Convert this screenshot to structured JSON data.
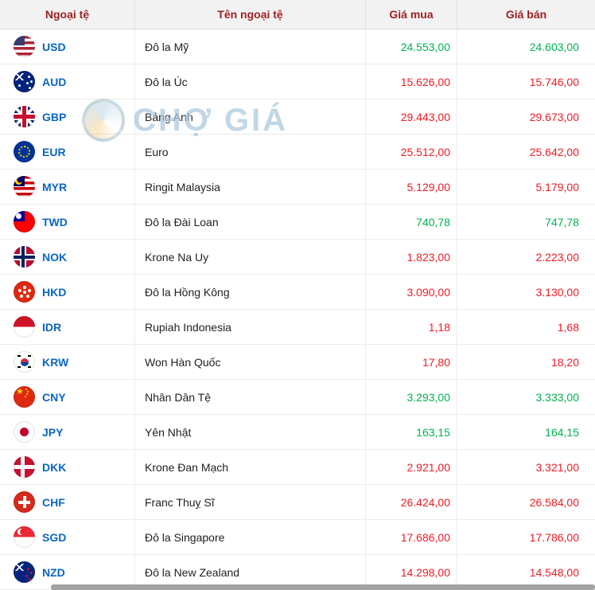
{
  "watermark": {
    "text": "CHỢ GIÁ"
  },
  "colors": {
    "up": "#00b14f",
    "down": "#ee1c25",
    "code": "#0a66c2",
    "header_text": "#9e2021",
    "header_bg": "#f2f2f2",
    "watermark": "#a9c6da"
  },
  "table": {
    "headers": [
      "Ngoại tệ",
      "Tên ngoại tệ",
      "Giá mua",
      "Giá bán"
    ],
    "rows": [
      {
        "code": "USD",
        "flag": "us",
        "name": "Đô la Mỹ",
        "buy": "24.553,00",
        "sell": "24.603,00",
        "trend": "up"
      },
      {
        "code": "AUD",
        "flag": "au",
        "name": "Đô la Úc",
        "buy": "15.626,00",
        "sell": "15.746,00",
        "trend": "down"
      },
      {
        "code": "GBP",
        "flag": "gb",
        "name": "Bảng Anh",
        "buy": "29.443,00",
        "sell": "29.673,00",
        "trend": "down"
      },
      {
        "code": "EUR",
        "flag": "eu",
        "name": "Euro",
        "buy": "25.512,00",
        "sell": "25.642,00",
        "trend": "down"
      },
      {
        "code": "MYR",
        "flag": "my",
        "name": "Ringit Malaysia",
        "buy": "5.129,00",
        "sell": "5.179,00",
        "trend": "down"
      },
      {
        "code": "TWD",
        "flag": "tw",
        "name": "Đô la Đài Loan",
        "buy": "740,78",
        "sell": "747,78",
        "trend": "up"
      },
      {
        "code": "NOK",
        "flag": "no",
        "name": "Krone Na Uy",
        "buy": "1.823,00",
        "sell": "2.223,00",
        "trend": "down"
      },
      {
        "code": "HKD",
        "flag": "hk",
        "name": "Đô la Hồng Kông",
        "buy": "3.090,00",
        "sell": "3.130,00",
        "trend": "down"
      },
      {
        "code": "IDR",
        "flag": "id",
        "name": "Rupiah Indonesia",
        "buy": "1,18",
        "sell": "1,68",
        "trend": "down"
      },
      {
        "code": "KRW",
        "flag": "kr",
        "name": "Won Hàn Quốc",
        "buy": "17,80",
        "sell": "18,20",
        "trend": "down"
      },
      {
        "code": "CNY",
        "flag": "cn",
        "name": "Nhân Dân Tệ",
        "buy": "3.293,00",
        "sell": "3.333,00",
        "trend": "up"
      },
      {
        "code": "JPY",
        "flag": "jp",
        "name": "Yên Nhật",
        "buy": "163,15",
        "sell": "164,15",
        "trend": "up"
      },
      {
        "code": "DKK",
        "flag": "dk",
        "name": "Krone Đan Mạch",
        "buy": "2.921,00",
        "sell": "3.321,00",
        "trend": "down"
      },
      {
        "code": "CHF",
        "flag": "ch",
        "name": "Franc Thuỵ Sĩ",
        "buy": "26.424,00",
        "sell": "26.584,00",
        "trend": "down"
      },
      {
        "code": "SGD",
        "flag": "sg",
        "name": "Đô la Singapore",
        "buy": "17.686,00",
        "sell": "17.786,00",
        "trend": "down"
      },
      {
        "code": "NZD",
        "flag": "nz",
        "name": "Đô la New Zealand",
        "buy": "14.298,00",
        "sell": "14.548,00",
        "trend": "down"
      }
    ]
  }
}
